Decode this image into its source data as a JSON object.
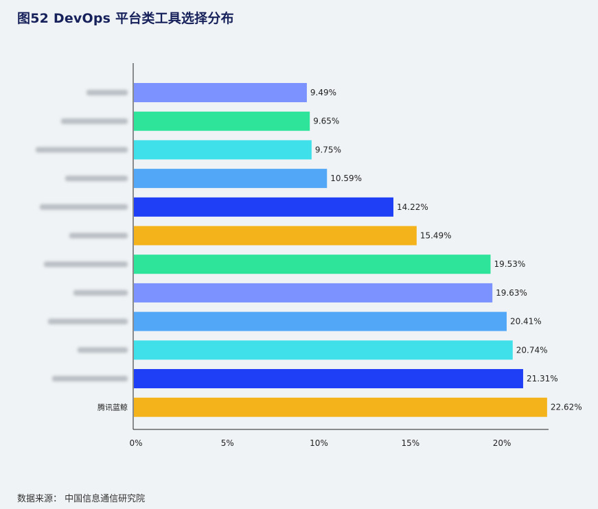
{
  "title": "图52 DevOps 平台类工具选择分布",
  "source": "数据来源： 中国信息通信研究院",
  "chart_data": {
    "type": "bar",
    "orientation": "horizontal",
    "title": "图52 DevOps 平台类工具选择分布",
    "categories": [
      "",
      "",
      "",
      "",
      "",
      "",
      "",
      "",
      "",
      "",
      "",
      "腾讯蓝鲸"
    ],
    "values": [
      9.49,
      9.65,
      9.75,
      10.59,
      14.22,
      15.49,
      19.53,
      19.63,
      20.41,
      20.74,
      21.31,
      22.62
    ],
    "value_labels": [
      "9.49%",
      "9.65%",
      "9.75%",
      "10.59%",
      "14.22%",
      "15.49%",
      "19.53%",
      "19.63%",
      "20.41%",
      "20.74%",
      "21.31%",
      "22.62%"
    ],
    "colors": [
      "#7b92ff",
      "#2ee39a",
      "#40e0ea",
      "#52a8f7",
      "#1e3ff5",
      "#f5b31b",
      "#2ee39a",
      "#7b92ff",
      "#52a8f7",
      "#40e0ea",
      "#1e3ff5",
      "#f5b31b"
    ],
    "xticks": [
      "0%",
      "5%",
      "10%",
      "15%",
      "20%"
    ],
    "xtick_values": [
      0,
      5,
      10,
      15,
      20
    ],
    "xlim": [
      0,
      22.7
    ],
    "grid": false,
    "legend": "none"
  }
}
